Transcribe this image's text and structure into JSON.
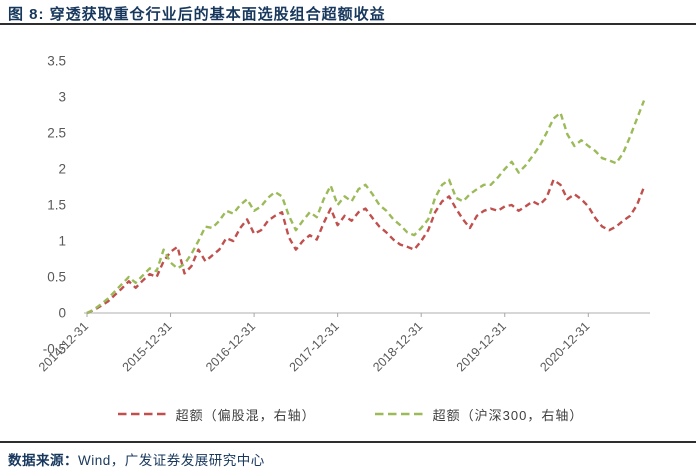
{
  "figure": {
    "title": "图 8: 穿透获取重仓行业后的基本面选股组合超额收益",
    "source_label": "数据来源：",
    "source_text": "Wind，广发证券发展研究中心"
  },
  "chart_data": {
    "type": "line",
    "title": "穿透获取重仓行业后的基本面选股组合超额收益",
    "line_style": "dashed",
    "grid": false,
    "legend_position": "bottom",
    "x_interval": "monthly",
    "x_start": "2014-12",
    "x_end": "2021-08",
    "x_tick_labels": [
      "2014-12-31",
      "2015-12-31",
      "2016-12-31",
      "2017-12-31",
      "2018-12-31",
      "2019-12-31",
      "2020-12-31"
    ],
    "x_tick_month_index": [
      0,
      12,
      24,
      36,
      48,
      60,
      72
    ],
    "y_ticks": [
      3.5,
      3,
      2.5,
      2,
      1.5,
      1,
      0.5,
      0,
      -0.5
    ],
    "ylim": [
      -0.5,
      3.5
    ],
    "series": [
      {
        "name": "超额（偏股混，右轴）",
        "axis": "right",
        "color": "#C0504D",
        "values": [
          0.0,
          0.04,
          0.1,
          0.16,
          0.25,
          0.34,
          0.44,
          0.35,
          0.45,
          0.54,
          0.5,
          0.72,
          0.85,
          0.92,
          0.55,
          0.65,
          0.88,
          0.72,
          0.8,
          0.88,
          1.04,
          1.0,
          1.18,
          1.3,
          1.1,
          1.15,
          1.28,
          1.35,
          1.4,
          1.05,
          0.88,
          1.0,
          1.08,
          1.02,
          1.25,
          1.45,
          1.22,
          1.35,
          1.28,
          1.4,
          1.45,
          1.32,
          1.2,
          1.12,
          1.02,
          0.95,
          0.92,
          0.88,
          1.0,
          1.15,
          1.4,
          1.55,
          1.62,
          1.45,
          1.3,
          1.18,
          1.35,
          1.42,
          1.45,
          1.42,
          1.48,
          1.5,
          1.42,
          1.48,
          1.55,
          1.5,
          1.6,
          1.85,
          1.78,
          1.58,
          1.65,
          1.58,
          1.48,
          1.32,
          1.2,
          1.15,
          1.2,
          1.28,
          1.35,
          1.5,
          1.75
        ]
      },
      {
        "name": "超额（沪深300，右轴）",
        "axis": "right",
        "color": "#9BBB59",
        "values": [
          0.0,
          0.05,
          0.12,
          0.2,
          0.3,
          0.4,
          0.5,
          0.42,
          0.52,
          0.62,
          0.58,
          0.88,
          0.7,
          0.62,
          0.68,
          0.82,
          1.0,
          1.2,
          1.18,
          1.28,
          1.42,
          1.38,
          1.5,
          1.58,
          1.42,
          1.48,
          1.6,
          1.68,
          1.62,
          1.35,
          1.15,
          1.28,
          1.4,
          1.33,
          1.58,
          1.77,
          1.5,
          1.62,
          1.55,
          1.72,
          1.78,
          1.65,
          1.5,
          1.42,
          1.3,
          1.22,
          1.12,
          1.08,
          1.18,
          1.3,
          1.6,
          1.78,
          1.85,
          1.6,
          1.55,
          1.65,
          1.72,
          1.78,
          1.78,
          1.88,
          2.0,
          2.1,
          1.95,
          2.05,
          2.18,
          2.32,
          2.5,
          2.7,
          2.78,
          2.48,
          2.32,
          2.4,
          2.32,
          2.25,
          2.15,
          2.12,
          2.08,
          2.22,
          2.45,
          2.7,
          2.95
        ]
      }
    ]
  },
  "colors": {
    "title": "#17375D",
    "footer": "#17375D",
    "axis_labels": "#595959",
    "axis_line": "#BFBFBF",
    "tick": "#A6A6A6",
    "divider": "#2E2E2E",
    "legend_text": "#3F3F3F"
  }
}
